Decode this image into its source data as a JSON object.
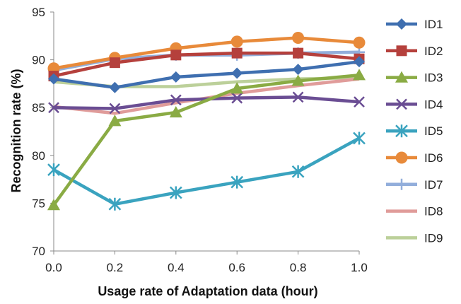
{
  "chart_data": {
    "type": "line",
    "title": "",
    "xlabel": "Usage rate of Adaptation data (hour)",
    "ylabel": "Recognition rate (%)",
    "x": [
      0.0,
      0.2,
      0.4,
      0.6,
      0.8,
      1.0
    ],
    "x_tick_labels": [
      "0.0",
      "0.2",
      "0.4",
      "0.6",
      "0.8",
      "1.0"
    ],
    "xlim": [
      0.0,
      1.0
    ],
    "ylim": [
      70,
      95
    ],
    "y_ticks": [
      70,
      75,
      80,
      85,
      90,
      95
    ],
    "grid": false,
    "legend_position": "right",
    "series": [
      {
        "name": "ID1",
        "color": "#3f6fb0",
        "marker": "diamond",
        "values": [
          88.0,
          87.1,
          88.2,
          88.6,
          89.0,
          89.8
        ]
      },
      {
        "name": "ID2",
        "color": "#b5403c",
        "marker": "square",
        "values": [
          88.3,
          89.7,
          90.5,
          90.7,
          90.7,
          90.1
        ]
      },
      {
        "name": "ID3",
        "color": "#8aab44",
        "marker": "triangle",
        "values": [
          74.8,
          83.6,
          84.5,
          87.0,
          87.8,
          88.4
        ]
      },
      {
        "name": "ID4",
        "color": "#6a4d93",
        "marker": "x",
        "values": [
          85.0,
          84.9,
          85.8,
          86.0,
          86.1,
          85.6
        ]
      },
      {
        "name": "ID5",
        "color": "#3aa3bf",
        "marker": "asterisk",
        "values": [
          78.5,
          74.9,
          76.1,
          77.2,
          78.3,
          81.8
        ]
      },
      {
        "name": "ID6",
        "color": "#e88a3a",
        "marker": "circle",
        "values": [
          89.1,
          90.2,
          91.2,
          91.9,
          92.3,
          91.8
        ]
      },
      {
        "name": "ID7",
        "color": "#92aedb",
        "marker": "plus",
        "values": [
          88.9,
          90.1,
          90.5,
          90.5,
          90.7,
          90.8
        ]
      },
      {
        "name": "ID8",
        "color": "#e09c9a",
        "marker": "none",
        "values": [
          85.1,
          84.4,
          85.5,
          86.5,
          87.3,
          88.0
        ]
      },
      {
        "name": "ID9",
        "color": "#bcd09a",
        "marker": "none",
        "values": [
          87.7,
          87.2,
          87.2,
          87.7,
          88.0,
          88.1
        ]
      }
    ]
  }
}
